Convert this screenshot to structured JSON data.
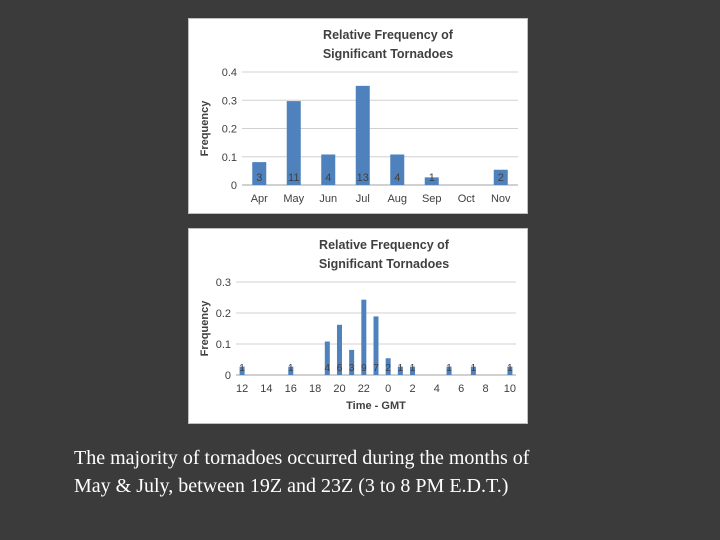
{
  "charts": {
    "chart_data": [
      {
        "type": "bar",
        "title": [
          "Relative Frequency of",
          "Significant Tornadoes"
        ],
        "ylabel": "Frequency",
        "xlabel": "",
        "categories": [
          "Apr",
          "May",
          "Jun",
          "Jul",
          "Aug",
          "Sep",
          "Oct",
          "Nov"
        ],
        "values": [
          0.081,
          0.297,
          0.108,
          0.351,
          0.108,
          0.027,
          0,
          0.054
        ],
        "data_labels": [
          "3",
          "11",
          "4",
          "13",
          "4",
          "1",
          "",
          "2"
        ],
        "ylim": [
          0,
          0.4
        ],
        "yticks": [
          0,
          0.1,
          0.2,
          0.3,
          0.4
        ],
        "ytick_labels": [
          "0",
          "0.1",
          "0.2",
          "0.3",
          "0.4"
        ],
        "grid": true,
        "bar_color": "#4f81bd"
      },
      {
        "type": "bar",
        "title": [
          "Relative Frequency of",
          "Significant Tornadoes"
        ],
        "ylabel": "Frequency",
        "xlabel": "Time - GMT",
        "x": [
          12,
          13,
          14,
          15,
          16,
          17,
          18,
          19,
          20,
          21,
          22,
          23,
          0,
          1,
          2,
          3,
          4,
          5,
          6,
          7,
          8,
          9,
          10
        ],
        "xtick_labels": [
          "12",
          "14",
          "16",
          "18",
          "20",
          "22",
          "0",
          "2",
          "4",
          "6",
          "8",
          "10"
        ],
        "xtick_hours": [
          12,
          14,
          16,
          18,
          20,
          22,
          0,
          2,
          4,
          6,
          8,
          10
        ],
        "values": [
          0.027,
          0,
          0,
          0,
          0.027,
          0,
          0,
          0.108,
          0.162,
          0.081,
          0.243,
          0.189,
          0.054,
          0.027,
          0.027,
          0,
          0,
          0.027,
          0,
          0.027,
          0,
          0,
          0.027
        ],
        "data_labels": [
          "1",
          "",
          "",
          "",
          "1",
          "",
          "",
          "4",
          "6",
          "3",
          "9",
          "7",
          "2",
          "1",
          "1",
          "",
          "",
          "1",
          "",
          "1",
          "",
          "",
          "1"
        ],
        "ylim": [
          0,
          0.3
        ],
        "yticks": [
          0,
          0.1,
          0.2,
          0.3
        ],
        "ytick_labels": [
          "0",
          "0.1",
          "0.2",
          "0.3"
        ],
        "grid": true,
        "bar_color": "#4f81bd"
      }
    ]
  },
  "caption": {
    "line1": "The majority of tornadoes occurred during the months of",
    "line2": "May & July, between 19Z and 23Z (3 to 8 PM E.D.T.)"
  }
}
